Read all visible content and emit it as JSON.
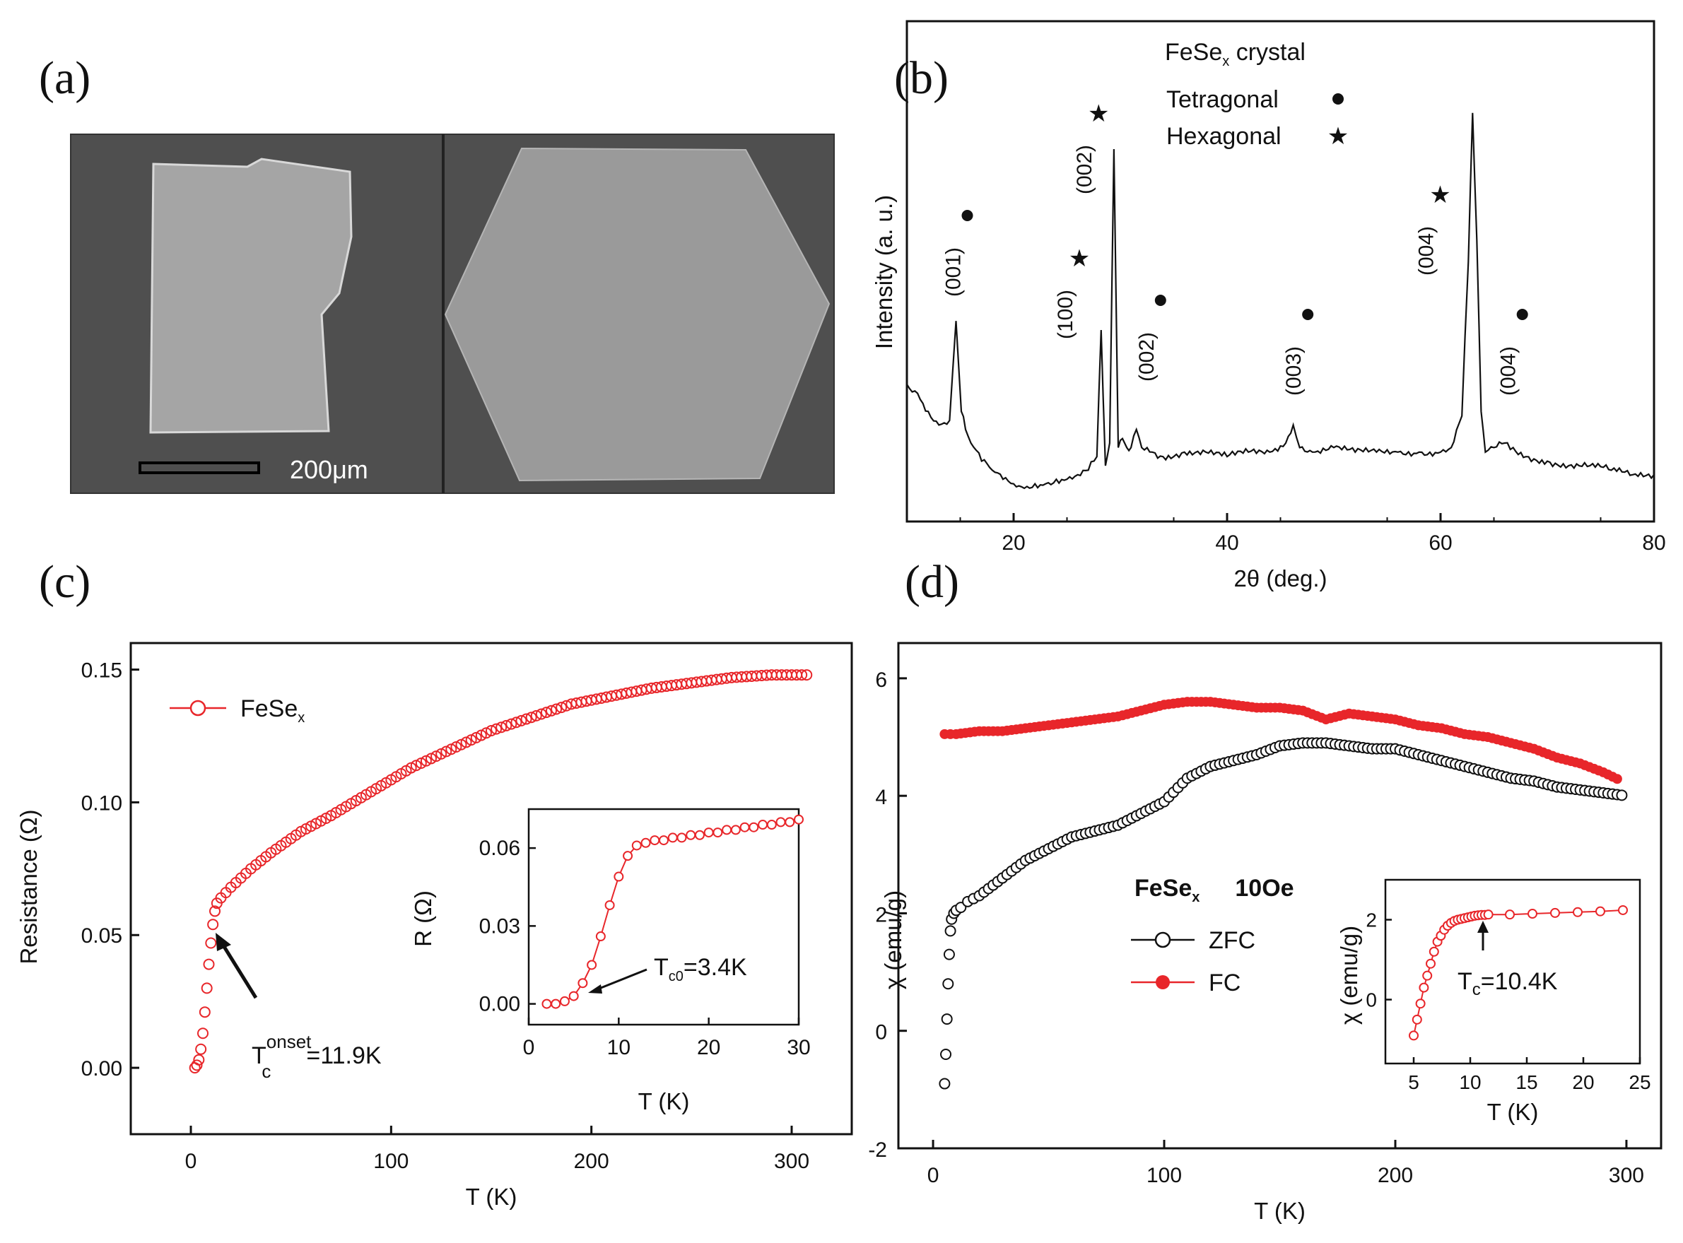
{
  "panels": {
    "a": "(a)",
    "b": "(b)",
    "c": "(c)",
    "d": "(d)"
  },
  "sem": {
    "scale_label": "200μm"
  },
  "colors": {
    "red": "#e8262a",
    "blue": "#2a2aea",
    "black": "#111111"
  },
  "chart_data": [
    {
      "id": "b",
      "type": "line",
      "xlabel": "2θ (deg.)",
      "ylabel": "Intensity (a. u.)",
      "xlim": [
        10,
        80
      ],
      "xticks": [
        20,
        40,
        60,
        80
      ],
      "legend": {
        "title_base": "FeSe",
        "title_sub": "x",
        "title_suffix": "crystal",
        "entries": [
          {
            "label": "Tetragonal",
            "marker": "●",
            "color": "#e8262a"
          },
          {
            "label": "Hexagonal",
            "marker": "★",
            "color": "#2a2aea"
          }
        ]
      },
      "series": [
        {
          "x": [
            10,
            11,
            12,
            13,
            14,
            14.6,
            15.1,
            15.5,
            16,
            17,
            18,
            19,
            20,
            21,
            22,
            23,
            24,
            25,
            26,
            27,
            27.8,
            28.2,
            28.6,
            29,
            29.4,
            29.8,
            30.2,
            30.6,
            31,
            31.5,
            32,
            32.5,
            33,
            34,
            36,
            38,
            40,
            42,
            44,
            45.5,
            46.2,
            46.8,
            48,
            50,
            52,
            54,
            56,
            58,
            60,
            61,
            62,
            62.6,
            63,
            63.4,
            63.8,
            64.2,
            65,
            66,
            66.8,
            68,
            70,
            72,
            74,
            76,
            78,
            80
          ],
          "y": [
            28,
            26,
            22,
            19,
            20,
            42,
            22,
            18,
            15,
            11,
            9,
            7,
            6,
            5,
            6,
            6,
            7,
            7,
            8,
            9,
            12,
            40,
            10,
            15,
            80,
            14,
            16,
            14,
            14,
            18,
            14,
            14,
            13,
            12,
            13,
            13,
            12,
            13,
            13,
            15,
            19,
            14,
            13,
            14,
            13,
            13,
            13,
            13,
            13,
            14,
            21,
            55,
            88,
            60,
            22,
            13,
            14,
            15,
            14,
            12,
            11,
            10,
            10,
            9,
            8,
            8
          ]
        }
      ],
      "peaks": [
        {
          "x": 15.0,
          "label": "(001)",
          "color": "#e8262a",
          "marker": "●"
        },
        {
          "x": 25.5,
          "label": "(100)",
          "color": "#2a2aea",
          "marker": "★"
        },
        {
          "x": 27.3,
          "label": "(002)",
          "color": "#2a2aea",
          "marker": "★"
        },
        {
          "x": 33.1,
          "label": "(002)",
          "color": "#e8262a",
          "marker": "●"
        },
        {
          "x": 46.9,
          "label": "(003)",
          "color": "#e8262a",
          "marker": "●"
        },
        {
          "x": 59.3,
          "label": "(004)",
          "color": "#2a2aea",
          "marker": "★"
        },
        {
          "x": 67.0,
          "label": "(004)",
          "color": "#e8262a",
          "marker": "●"
        }
      ]
    },
    {
      "id": "c",
      "type": "scatter",
      "xlabel": "T (K)",
      "ylabel": "Resistance (Ω)",
      "xlim": [
        -30,
        330
      ],
      "ylim": [
        -0.025,
        0.16
      ],
      "xticks": [
        0,
        100,
        200,
        300
      ],
      "yticks": [
        "0.00",
        "0.05",
        "0.10",
        "0.15"
      ],
      "series": [
        {
          "name": "FeSe",
          "name_sub": "x",
          "color": "#e8262a",
          "x": [
            2,
            3,
            4,
            5,
            6,
            7,
            8,
            9,
            10,
            11,
            12,
            13,
            15,
            20,
            30,
            40,
            55,
            70,
            90,
            110,
            130,
            150,
            170,
            190,
            210,
            230,
            250,
            270,
            290,
            310
          ],
          "y": [
            0,
            0.001,
            0.003,
            0.007,
            0.013,
            0.021,
            0.03,
            0.039,
            0.047,
            0.054,
            0.059,
            0.062,
            0.064,
            0.068,
            0.075,
            0.081,
            0.089,
            0.095,
            0.104,
            0.113,
            0.12,
            0.127,
            0.132,
            0.137,
            0.14,
            0.143,
            0.145,
            0.147,
            0.148,
            0.148
          ]
        }
      ],
      "annotation": {
        "base": "T",
        "sub": "c",
        "sup": "onset",
        "rest": "=11.9K"
      },
      "inset": {
        "xlabel": "T (K)",
        "ylabel": "R (Ω)",
        "xlim": [
          0,
          30
        ],
        "ylim": [
          -0.008,
          0.075
        ],
        "xticks": [
          0,
          10,
          20,
          30
        ],
        "yticks": [
          "0.00",
          "0.03",
          "0.06"
        ],
        "annotation": {
          "base": "T",
          "sub": "c0",
          "rest": "=3.4K"
        },
        "series": [
          {
            "x": [
              2,
              3,
              4,
              5,
              6,
              7,
              8,
              9,
              10,
              11,
              12,
              13,
              14,
              15,
              16,
              17,
              18,
              19,
              20,
              21,
              22,
              23,
              24,
              25,
              26,
              27,
              28,
              29,
              30
            ],
            "y": [
              0,
              0,
              0.001,
              0.003,
              0.008,
              0.015,
              0.026,
              0.038,
              0.049,
              0.057,
              0.061,
              0.062,
              0.063,
              0.063,
              0.064,
              0.064,
              0.065,
              0.065,
              0.066,
              0.066,
              0.067,
              0.067,
              0.068,
              0.068,
              0.069,
              0.069,
              0.07,
              0.07,
              0.071
            ]
          }
        ]
      }
    },
    {
      "id": "d",
      "type": "scatter",
      "xlabel": "T (K)",
      "ylabel": "χ (emu/g)",
      "xlim": [
        -15,
        315
      ],
      "ylim": [
        -2,
        6.6
      ],
      "xticks": [
        0,
        100,
        200,
        300
      ],
      "yticks": [
        -2,
        0,
        2,
        4,
        6
      ],
      "legend_title": {
        "base": "FeSe",
        "sub": "x",
        "field": "10Oe"
      },
      "series": [
        {
          "name": "ZFC",
          "style": "open",
          "color": "#111111",
          "x": [
            5,
            5.5,
            6,
            6.5,
            7,
            7.5,
            8,
            9,
            10,
            12,
            15,
            20,
            30,
            40,
            50,
            60,
            70,
            80,
            90,
            100,
            110,
            120,
            130,
            140,
            150,
            160,
            170,
            180,
            190,
            200,
            210,
            220,
            230,
            240,
            250,
            260,
            270,
            280,
            290,
            300
          ],
          "y": [
            -0.9,
            -0.4,
            0.2,
            0.8,
            1.3,
            1.7,
            1.9,
            2.0,
            2.05,
            2.1,
            2.2,
            2.3,
            2.6,
            2.9,
            3.1,
            3.3,
            3.4,
            3.5,
            3.7,
            3.9,
            4.3,
            4.5,
            4.6,
            4.7,
            4.85,
            4.9,
            4.9,
            4.85,
            4.8,
            4.8,
            4.7,
            4.6,
            4.5,
            4.4,
            4.3,
            4.25,
            4.15,
            4.1,
            4.05,
            4.0
          ]
        },
        {
          "name": "FC",
          "style": "filled",
          "color": "#e8262a",
          "x": [
            5,
            10,
            20,
            30,
            40,
            50,
            60,
            70,
            80,
            90,
            100,
            110,
            120,
            130,
            140,
            150,
            160,
            170,
            180,
            190,
            200,
            210,
            220,
            230,
            240,
            250,
            260,
            270,
            280,
            290,
            298
          ],
          "y": [
            5.05,
            5.05,
            5.1,
            5.1,
            5.15,
            5.2,
            5.25,
            5.3,
            5.35,
            5.45,
            5.55,
            5.6,
            5.6,
            5.55,
            5.5,
            5.5,
            5.45,
            5.3,
            5.4,
            5.35,
            5.3,
            5.2,
            5.15,
            5.05,
            5.0,
            4.9,
            4.8,
            4.65,
            4.55,
            4.4,
            4.25
          ]
        }
      ],
      "inset": {
        "xlabel": "T (K)",
        "ylabel": "χ (emu/g)",
        "xlim": [
          2.5,
          25
        ],
        "ylim": [
          -1.6,
          3.0
        ],
        "xticks": [
          5,
          10,
          15,
          20,
          25
        ],
        "yticks": [
          0,
          2
        ],
        "annotation": {
          "base": "T",
          "sub": "c",
          "rest": "=10.4K"
        },
        "series": [
          {
            "x": [
              5,
              5.3,
              5.6,
              5.9,
              6.2,
              6.5,
              6.8,
              7.1,
              7.4,
              7.7,
              8,
              8.3,
              8.6,
              8.9,
              9.2,
              9.5,
              9.8,
              10.1,
              10.4,
              10.7,
              11,
              11.3,
              11.6,
              13.5,
              15.5,
              17.5,
              19.5,
              21.5,
              23.5
            ],
            "y": [
              -0.9,
              -0.5,
              -0.1,
              0.3,
              0.6,
              0.9,
              1.2,
              1.45,
              1.6,
              1.75,
              1.85,
              1.92,
              1.97,
              2.0,
              2.02,
              2.04,
              2.06,
              2.08,
              2.1,
              2.11,
              2.12,
              2.12,
              2.13,
              2.13,
              2.15,
              2.17,
              2.19,
              2.21,
              2.24
            ]
          }
        ]
      }
    }
  ]
}
